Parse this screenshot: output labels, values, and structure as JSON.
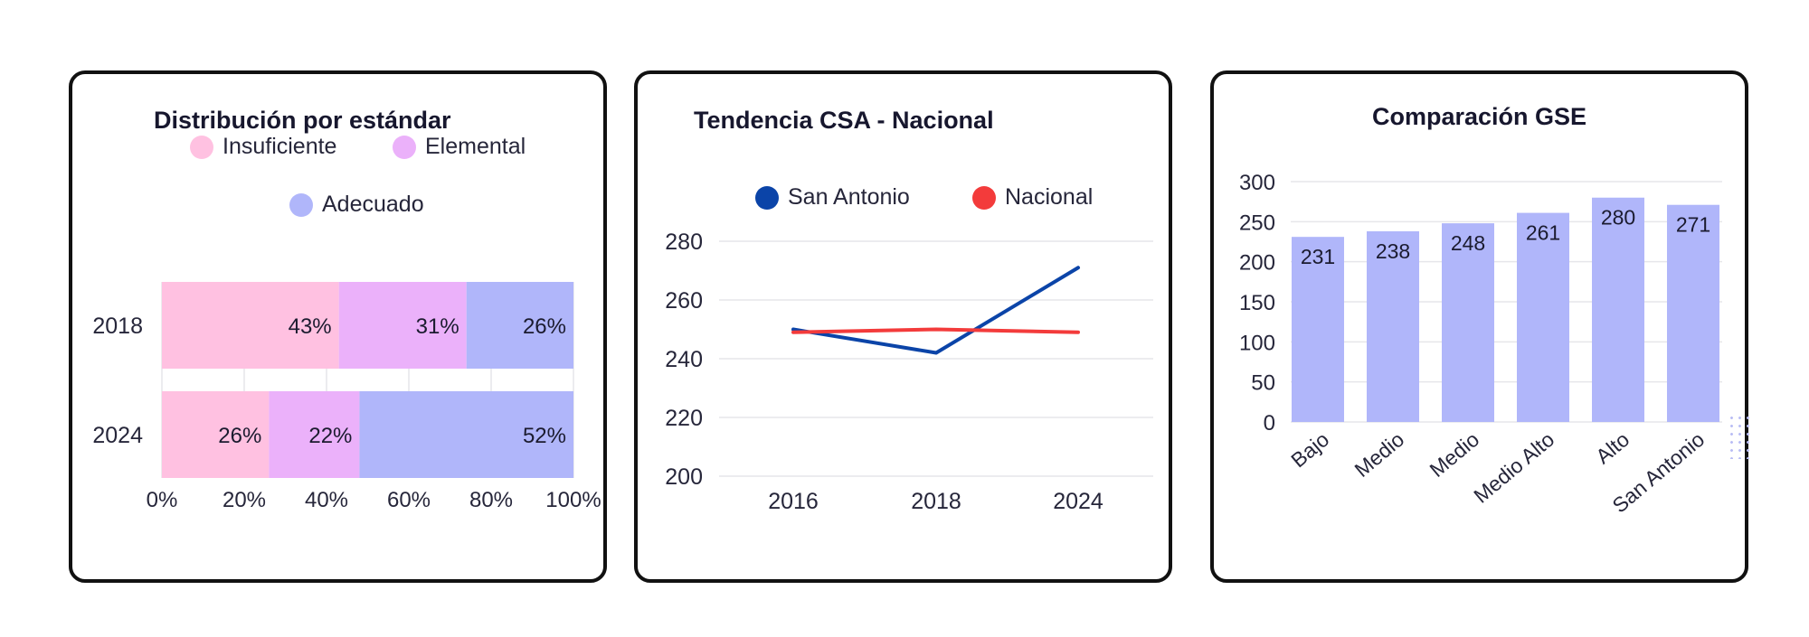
{
  "colors": {
    "insuficiente": "#ffc1e1",
    "elemental": "#ebb1fa",
    "adecuado": "#b0b6fa",
    "san_antonio": "#0b44a8",
    "nacional": "#f33b3b",
    "bar": "#b0b6fa",
    "grid": "#e6e6ea",
    "border": "#111111"
  },
  "chart_data": [
    {
      "type": "bar",
      "orientation": "horizontal",
      "stacked": true,
      "title": "Distribución por estándar",
      "categories": [
        "2018",
        "2024"
      ],
      "series": [
        {
          "name": "Insuficiente",
          "values": [
            43,
            26
          ],
          "labels": [
            "43%",
            "26%"
          ],
          "color": "#ffc1e1"
        },
        {
          "name": "Elemental",
          "values": [
            31,
            22
          ],
          "labels": [
            "31%",
            "22%"
          ],
          "color": "#ebb1fa"
        },
        {
          "name": "Adecuado",
          "values": [
            26,
            52
          ],
          "labels": [
            "26%",
            "52%"
          ],
          "color": "#b0b6fa"
        }
      ],
      "xlim": [
        0,
        100
      ],
      "xticks": [
        "0%",
        "20%",
        "40%",
        "60%",
        "80%",
        "100%"
      ],
      "legend_placement": "top",
      "grid": true
    },
    {
      "type": "line",
      "title": "Tendencia CSA - Nacional",
      "x": [
        "2016",
        "2018",
        "2024"
      ],
      "series": [
        {
          "name": "San Antonio",
          "values": [
            250,
            242,
            271
          ],
          "color": "#0b44a8"
        },
        {
          "name": "Nacional",
          "values": [
            249,
            250,
            249
          ],
          "color": "#f33b3b"
        }
      ],
      "ylim": [
        200,
        280
      ],
      "yticks": [
        "200",
        "220",
        "240",
        "260",
        "280"
      ],
      "legend_placement": "top",
      "grid": true
    },
    {
      "type": "bar",
      "title": "Comparación GSE",
      "categories": [
        "Bajo",
        "Medio",
        "Medio",
        "Medio Alto",
        "Alto",
        "San Antonio"
      ],
      "values": [
        231,
        238,
        248,
        261,
        280,
        271
      ],
      "labels": [
        "231",
        "238",
        "248",
        "261",
        "280",
        "271"
      ],
      "ylim": [
        0,
        300
      ],
      "yticks": [
        "0",
        "50",
        "100",
        "150",
        "200",
        "250",
        "300"
      ],
      "grid": true
    }
  ]
}
